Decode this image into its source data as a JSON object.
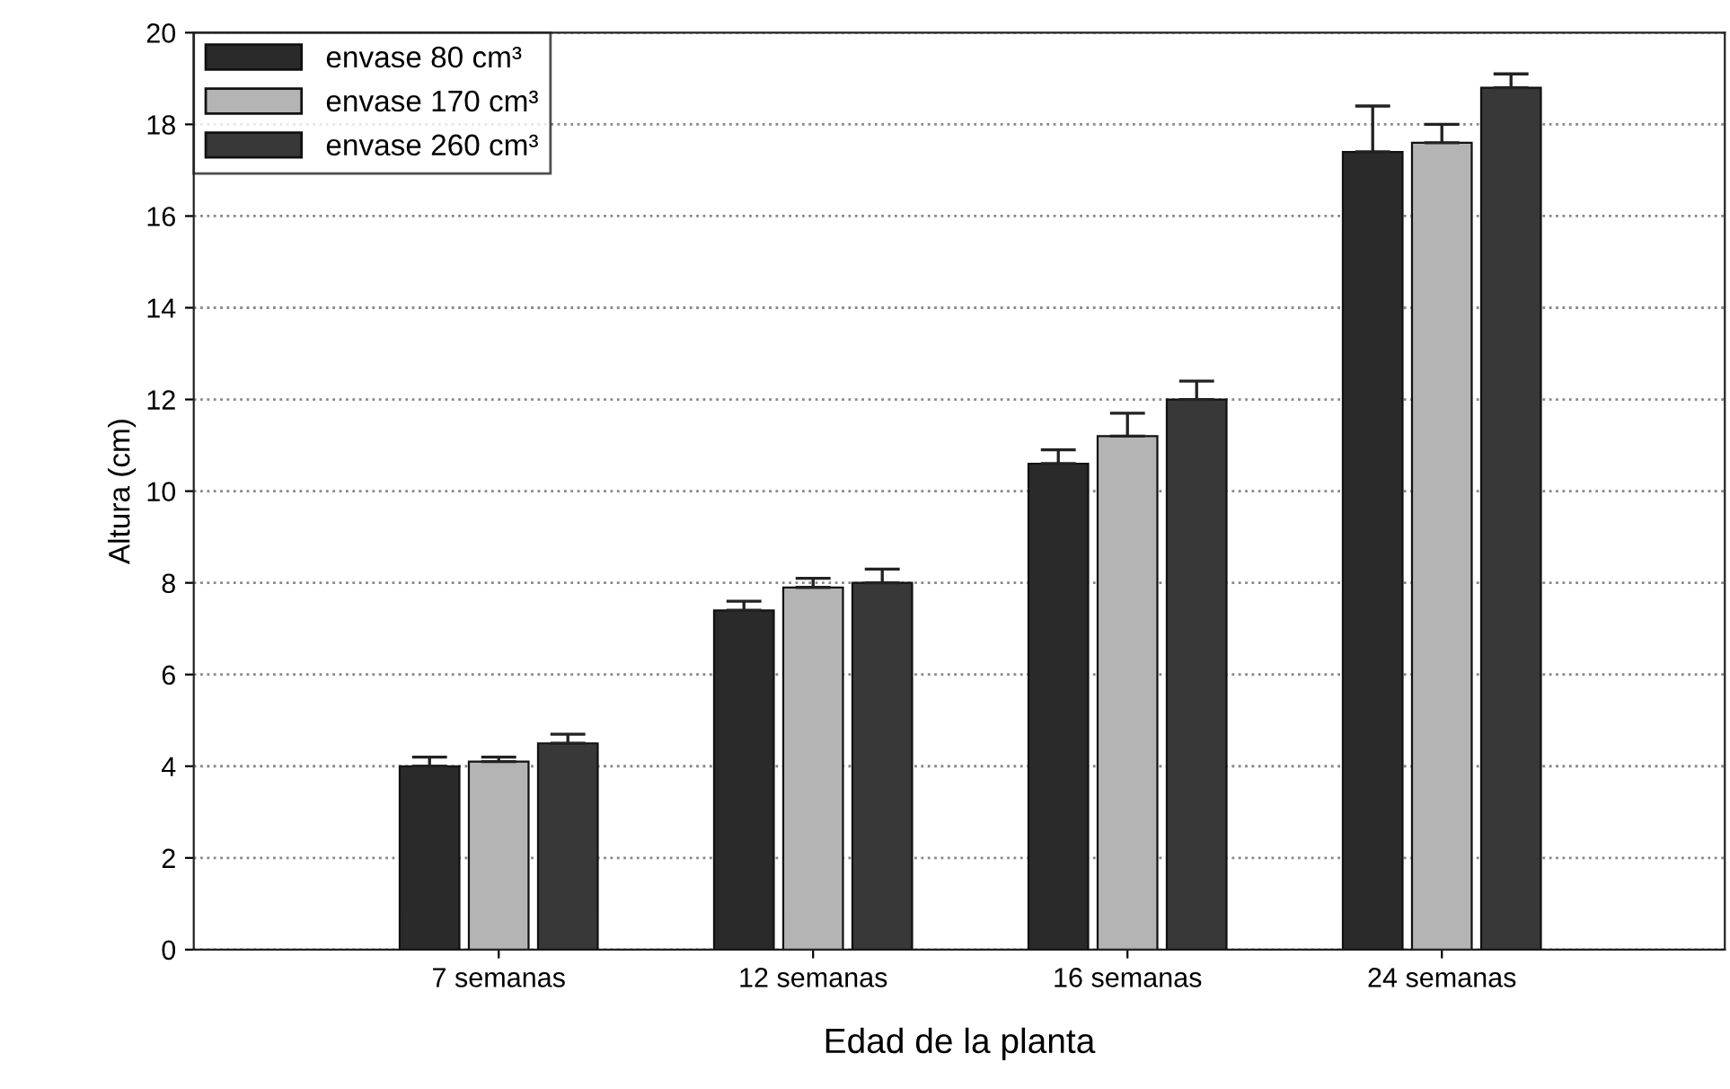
{
  "chart_data": {
    "type": "bar",
    "xlabel": "Edad de la planta",
    "ylabel": "Altura (cm)",
    "categories": [
      "7 semanas",
      "12 semanas",
      "16 semanas",
      "24 semanas"
    ],
    "series": [
      {
        "name": "envase 80 cm³",
        "color": "#2a2a2a",
        "values": [
          4.0,
          7.4,
          10.6,
          17.4
        ],
        "errors": [
          [
            4.0,
            4.2
          ],
          [
            7.4,
            7.6
          ],
          [
            10.6,
            10.9
          ],
          [
            17.4,
            18.4
          ]
        ]
      },
      {
        "name": "envase 170 cm³",
        "color": "#b4b4b4",
        "values": [
          4.1,
          7.9,
          11.2,
          17.6
        ],
        "errors": [
          [
            4.1,
            4.2
          ],
          [
            7.9,
            8.1
          ],
          [
            11.2,
            11.7
          ],
          [
            17.6,
            18.0
          ]
        ]
      },
      {
        "name": "envase 260 cm³",
        "color": "#383838",
        "values": [
          4.5,
          8.0,
          12.0,
          18.8
        ],
        "errors": [
          [
            4.5,
            4.7
          ],
          [
            8.0,
            8.3
          ],
          [
            12.0,
            12.4
          ],
          [
            18.8,
            19.1
          ]
        ]
      }
    ],
    "ylim": [
      0,
      20
    ],
    "yticks": [
      0,
      2,
      4,
      6,
      8,
      10,
      12,
      14,
      16,
      18,
      20
    ],
    "grid": "y",
    "legend": "top left"
  }
}
